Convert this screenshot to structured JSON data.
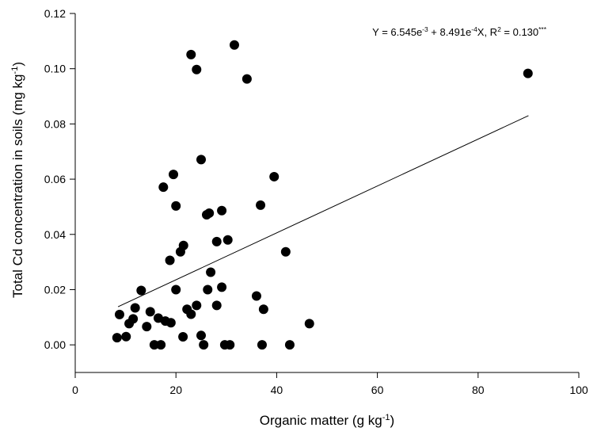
{
  "chart_data": {
    "type": "scatter",
    "x_label": [
      {
        "text": "Organic matter (g kg"
      },
      {
        "sup": "-1"
      },
      {
        "text": ")"
      }
    ],
    "y_label": [
      {
        "text": "Total Cd concentration in soils (mg kg"
      },
      {
        "sup": "-1"
      },
      {
        "text": ")"
      }
    ],
    "annotation": [
      {
        "text": "Y = 6.545e"
      },
      {
        "sup": "-3"
      },
      {
        "text": " + 8.491e"
      },
      {
        "sup": "-4"
      },
      {
        "text": "X, R"
      },
      {
        "sup": "2"
      },
      {
        "text": " = 0.130"
      },
      {
        "sup": "***"
      }
    ],
    "xlim": [
      0,
      100
    ],
    "xticks": [
      0,
      20,
      40,
      60,
      80,
      100
    ],
    "ylim": [
      -0.01,
      0.12
    ],
    "yticks": [
      {
        "value": 0,
        "label": "0.00"
      },
      {
        "value": 0.02,
        "label": "0.02"
      },
      {
        "value": 0.04,
        "label": "0.04"
      },
      {
        "value": 0.06,
        "label": "0.06"
      },
      {
        "value": 0.08,
        "label": "0.08"
      },
      {
        "value": 0.1,
        "label": "0.10"
      },
      {
        "value": 0.12,
        "label": "0.12"
      }
    ],
    "color": "#000000",
    "x": [
      8.3,
      8.8,
      10.1,
      10.7,
      11.5,
      11.9,
      13.1,
      14.2,
      14.9,
      15.7,
      16.5,
      17,
      17.5,
      17.9,
      18.8,
      19,
      19.5,
      20,
      20,
      20.9,
      21.5,
      21.4,
      22.2,
      23,
      23,
      24.1,
      24.1,
      25,
      25,
      25.5,
      26.1,
      26.6,
      26.3,
      26.9,
      28.1,
      28.1,
      29.1,
      29.1,
      29.7,
      30.7,
      30.3,
      31.6,
      34.1,
      36,
      36.8,
      37.1,
      37.4,
      39.5,
      41.8,
      42.6,
      46.5,
      89.9
    ],
    "values": [
      0.0026,
      0.011,
      0.003,
      0.0077,
      0.0094,
      0.0134,
      0.0197,
      0.0066,
      0.012,
      0,
      0.0097,
      0,
      0.0571,
      0.0086,
      0.0306,
      0.008,
      0.0617,
      0.0503,
      0.02,
      0.0337,
      0.036,
      0.0029,
      0.0129,
      0.1051,
      0.0111,
      0.0997,
      0.0143,
      0.0671,
      0.0034,
      0,
      0.0471,
      0.0477,
      0.02,
      0.0263,
      0.0374,
      0.0143,
      0.0486,
      0.0209,
      0,
      0,
      0.038,
      0.1086,
      0.0963,
      0.0177,
      0.0506,
      0,
      0.0129,
      0.0609,
      0.0337,
      0,
      0.0077,
      0.0983
    ],
    "trendline": {
      "x": [
        8.5,
        90
      ],
      "values": [
        0.0138,
        0.083
      ]
    }
  }
}
